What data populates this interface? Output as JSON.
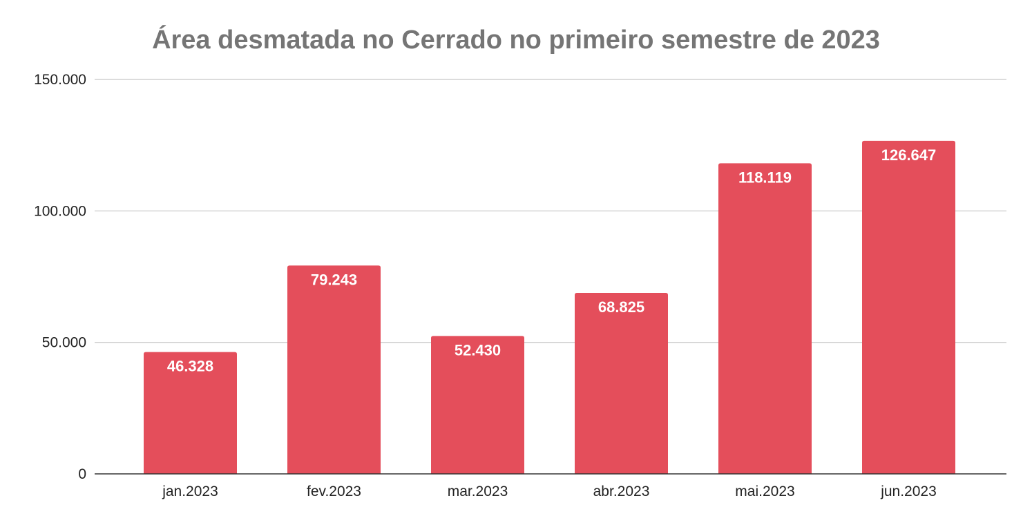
{
  "chart_data": {
    "type": "bar",
    "title": "Área desmatada no Cerrado no primeiro semestre de 2023",
    "xlabel": "",
    "ylabel": "",
    "categories": [
      "jan.2023",
      "fev.2023",
      "mar.2023",
      "abr.2023",
      "mai.2023",
      "jun.2023"
    ],
    "values": [
      46328,
      79243,
      52430,
      68825,
      118119,
      126647
    ],
    "value_labels": [
      "46.328",
      "79.243",
      "52.430",
      "68.825",
      "118.119",
      "126.647"
    ],
    "ylim": [
      0,
      150000
    ],
    "yticks": [
      0,
      50000,
      100000,
      150000
    ],
    "ytick_labels": [
      "0",
      "50.000",
      "100.000",
      "150.000"
    ],
    "grid": true,
    "legend": "none",
    "bar_color": "#e44e5b"
  }
}
